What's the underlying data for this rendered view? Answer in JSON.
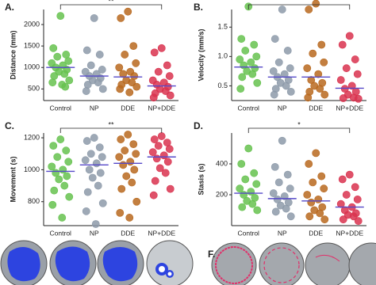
{
  "chart_data": [
    {
      "type": "strip",
      "title": "A.",
      "y_label": "Distance (mm)",
      "annotation": "**",
      "categories": [
        "Control",
        "NP",
        "DDE",
        "NP+DDE"
      ],
      "colors": [
        "#66c24f",
        "#8d9aa9",
        "#b8691f",
        "#d9334f"
      ],
      "mean_color": "#5548c8",
      "values": [
        [
          2200,
          1450,
          1300,
          1250,
          1150,
          1100,
          1050,
          1000,
          950,
          900,
          850,
          800,
          700,
          650,
          600,
          550
        ],
        [
          2150,
          1400,
          1300,
          1050,
          950,
          900,
          850,
          800,
          750,
          700,
          650,
          600,
          500,
          450
        ],
        [
          2300,
          2150,
          1500,
          1300,
          1100,
          1000,
          900,
          850,
          800,
          700,
          650,
          600,
          550,
          500,
          420
        ],
        [
          1450,
          1350,
          1050,
          900,
          800,
          700,
          650,
          600,
          550,
          500,
          450,
          400,
          350,
          300
        ]
      ],
      "means": [
        1000,
        800,
        780,
        570
      ],
      "ylim": [
        230,
        2350
      ],
      "yticks": [
        500,
        1000,
        1500,
        2000
      ]
    },
    {
      "type": "strip",
      "title": "B.",
      "y_label": "Velocity (mm/s)",
      "annotation": "",
      "categories": [
        "Control",
        "NP",
        "DDE",
        "NP+DDE"
      ],
      "colors": [
        "#66c24f",
        "#8d9aa9",
        "#b8691f",
        "#d9334f"
      ],
      "mean_color": "#5548c8",
      "values": [
        [
          1.85,
          1.3,
          1.2,
          1.1,
          1.0,
          0.95,
          0.9,
          0.85,
          0.8,
          0.75,
          0.7,
          0.65,
          0.55,
          0.45
        ],
        [
          1.8,
          1.3,
          1.1,
          0.9,
          0.8,
          0.75,
          0.7,
          0.65,
          0.6,
          0.55,
          0.5,
          0.45,
          0.4,
          0.35
        ],
        [
          1.9,
          1.8,
          1.2,
          1.05,
          0.9,
          0.8,
          0.7,
          0.6,
          0.55,
          0.5,
          0.45,
          0.4,
          0.35,
          0.3
        ],
        [
          1.35,
          1.2,
          0.95,
          0.8,
          0.7,
          0.6,
          0.5,
          0.45,
          0.4,
          0.35,
          0.3,
          0.29,
          0.28
        ]
      ],
      "means": [
        0.82,
        0.65,
        0.65,
        0.46
      ],
      "ylim": [
        0.25,
        1.8
      ],
      "yticks": [
        {
          "value": 0.5,
          "label": "0.5"
        },
        {
          "value": 1,
          "label": "1.0"
        },
        {
          "value": 1.5,
          "label": "1.5"
        }
      ]
    },
    {
      "type": "strip",
      "title": "C.",
      "y_label": "Movement (s)",
      "annotation": "**",
      "categories": [
        "Control",
        "NP",
        "DDE",
        "NP+DDE"
      ],
      "colors": [
        "#66c24f",
        "#8d9aa9",
        "#b8691f",
        "#d9334f"
      ],
      "mean_color": "#5548c8",
      "values": [
        [
          1190,
          1150,
          1120,
          1080,
          1050,
          1020,
          1000,
          980,
          960,
          940,
          900,
          870,
          830,
          780,
          700
        ],
        [
          1200,
          1180,
          1140,
          1100,
          1080,
          1060,
          1040,
          1000,
          980,
          950,
          900,
          860,
          790,
          740,
          660
        ],
        [
          1220,
          1190,
          1160,
          1120,
          1100,
          1080,
          1050,
          1030,
          1000,
          960,
          920,
          880,
          800,
          730,
          700
        ],
        [
          1210,
          1190,
          1170,
          1150,
          1130,
          1110,
          1090,
          1070,
          1050,
          1010,
          980,
          930,
          880,
          840
        ]
      ],
      "means": [
        990,
        1030,
        1040,
        1080
      ],
      "ylim": [
        650,
        1230
      ],
      "yticks": [
        800,
        1000,
        1200
      ]
    },
    {
      "type": "strip",
      "title": "D.",
      "y_label": "Stasis (s)",
      "annotation": "*",
      "categories": [
        "Control",
        "NP",
        "DDE",
        "NP+DDE"
      ],
      "colors": [
        "#66c24f",
        "#8d9aa9",
        "#b8691f",
        "#d9334f"
      ],
      "mean_color": "#5548c8",
      "values": [
        [
          500,
          400,
          340,
          300,
          270,
          240,
          220,
          200,
          180,
          160,
          140,
          120,
          100
        ],
        [
          550,
          380,
          330,
          280,
          240,
          210,
          190,
          170,
          150,
          130,
          110,
          90,
          60
        ],
        [
          470,
          400,
          320,
          280,
          240,
          200,
          170,
          150,
          120,
          100,
          80,
          60,
          40
        ],
        [
          330,
          300,
          250,
          200,
          170,
          140,
          120,
          100,
          80,
          70,
          60,
          40,
          30
        ]
      ],
      "means": [
        210,
        175,
        160,
        120
      ],
      "ylim": [
        0,
        600
      ],
      "yticks": [
        200,
        400
      ]
    }
  ],
  "images": {
    "label_f": "F."
  }
}
